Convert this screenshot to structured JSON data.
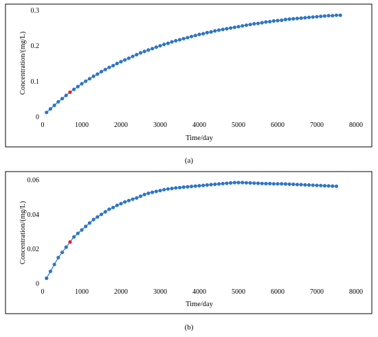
{
  "charts": [
    {
      "caption": "(a)",
      "type": "line",
      "xlabel": "Time/day",
      "ylabel": "Concentration/(mg/L)",
      "xlim": [
        0,
        8000
      ],
      "ylim": [
        0,
        0.3
      ],
      "x_ticks": [
        "0",
        "1000",
        "2000",
        "3000",
        "4000",
        "5000",
        "6000",
        "7000",
        "8000"
      ],
      "y_ticks": [
        "0",
        "0.1",
        "0.2",
        "0.3"
      ],
      "series_color": "#2e75c6",
      "highlight_color": "#e8202a",
      "highlight_index": 6,
      "x": [
        100,
        200,
        300,
        400,
        500,
        600,
        700,
        800,
        900,
        1000,
        1100,
        1200,
        1300,
        1400,
        1500,
        1600,
        1700,
        1800,
        1900,
        2000,
        2100,
        2200,
        2300,
        2400,
        2500,
        2600,
        2700,
        2800,
        2900,
        3000,
        3100,
        3200,
        3300,
        3400,
        3500,
        3600,
        3700,
        3800,
        3900,
        4000,
        4100,
        4200,
        4300,
        4400,
        4500,
        4600,
        4700,
        4800,
        4900,
        5000,
        5100,
        5200,
        5300,
        5400,
        5500,
        5600,
        5700,
        5800,
        5900,
        6000,
        6100,
        6200,
        6300,
        6400,
        6500,
        6600,
        6700,
        6800,
        6900,
        7000,
        7100,
        7200,
        7300,
        7400,
        7500,
        7600
      ],
      "y": [
        0.012,
        0.022,
        0.032,
        0.042,
        0.051,
        0.06,
        0.069,
        0.077,
        0.085,
        0.093,
        0.1,
        0.107,
        0.114,
        0.12,
        0.127,
        0.133,
        0.139,
        0.144,
        0.15,
        0.155,
        0.16,
        0.165,
        0.17,
        0.175,
        0.18,
        0.184,
        0.188,
        0.192,
        0.196,
        0.2,
        0.204,
        0.207,
        0.211,
        0.214,
        0.217,
        0.22,
        0.223,
        0.226,
        0.229,
        0.232,
        0.234,
        0.237,
        0.239,
        0.242,
        0.244,
        0.246,
        0.248,
        0.25,
        0.252,
        0.254,
        0.256,
        0.258,
        0.26,
        0.262,
        0.263,
        0.265,
        0.267,
        0.268,
        0.27,
        0.271,
        0.272,
        0.274,
        0.275,
        0.276,
        0.277,
        0.278,
        0.279,
        0.28,
        0.281,
        0.282,
        0.283,
        0.284,
        0.285,
        0.285,
        0.286,
        0.286
      ]
    },
    {
      "caption": "(b)",
      "type": "line",
      "xlabel": "Time/day",
      "ylabel": "Concentration/(mg/L)",
      "xlim": [
        0,
        8000
      ],
      "ylim": [
        0,
        0.06
      ],
      "x_ticks": [
        "0",
        "1000",
        "2000",
        "3000",
        "4000",
        "5000",
        "6000",
        "7000",
        "8000"
      ],
      "y_ticks": [
        "0",
        "0.02",
        "0.04",
        "0.06"
      ],
      "series_color": "#2e75c6",
      "highlight_color": "#e8202a",
      "highlight_index": 6,
      "x": [
        100,
        200,
        300,
        400,
        500,
        600,
        700,
        800,
        900,
        1000,
        1100,
        1200,
        1300,
        1400,
        1500,
        1600,
        1700,
        1800,
        1900,
        2000,
        2100,
        2200,
        2300,
        2400,
        2500,
        2600,
        2700,
        2800,
        2900,
        3000,
        3100,
        3200,
        3300,
        3400,
        3500,
        3600,
        3700,
        3800,
        3900,
        4000,
        4100,
        4200,
        4300,
        4400,
        4500,
        4600,
        4700,
        4800,
        4900,
        5000,
        5100,
        5200,
        5300,
        5400,
        5500,
        5600,
        5700,
        5800,
        5900,
        6000,
        6100,
        6200,
        6300,
        6400,
        6500,
        6600,
        6700,
        6800,
        6900,
        7000,
        7100,
        7200,
        7300,
        7400,
        7500
      ],
      "y": [
        0.003,
        0.007,
        0.011,
        0.015,
        0.018,
        0.021,
        0.024,
        0.027,
        0.029,
        0.031,
        0.033,
        0.035,
        0.037,
        0.0385,
        0.04,
        0.0415,
        0.043,
        0.044,
        0.0452,
        0.0462,
        0.0472,
        0.048,
        0.0488,
        0.0495,
        0.0505,
        0.0515,
        0.0522,
        0.0528,
        0.0533,
        0.0538,
        0.0543,
        0.0547,
        0.055,
        0.0553,
        0.0555,
        0.0558,
        0.056,
        0.0562,
        0.0564,
        0.0566,
        0.0568,
        0.057,
        0.0572,
        0.0574,
        0.0576,
        0.0578,
        0.058,
        0.0582,
        0.0584,
        0.0584,
        0.0584,
        0.0583,
        0.0582,
        0.0581,
        0.058,
        0.0579,
        0.0578,
        0.0578,
        0.0577,
        0.0577,
        0.0577,
        0.0576,
        0.0575,
        0.0574,
        0.0573,
        0.0572,
        0.0571,
        0.057,
        0.0569,
        0.0568,
        0.0567,
        0.0566,
        0.0565,
        0.0564,
        0.0563
      ]
    }
  ]
}
